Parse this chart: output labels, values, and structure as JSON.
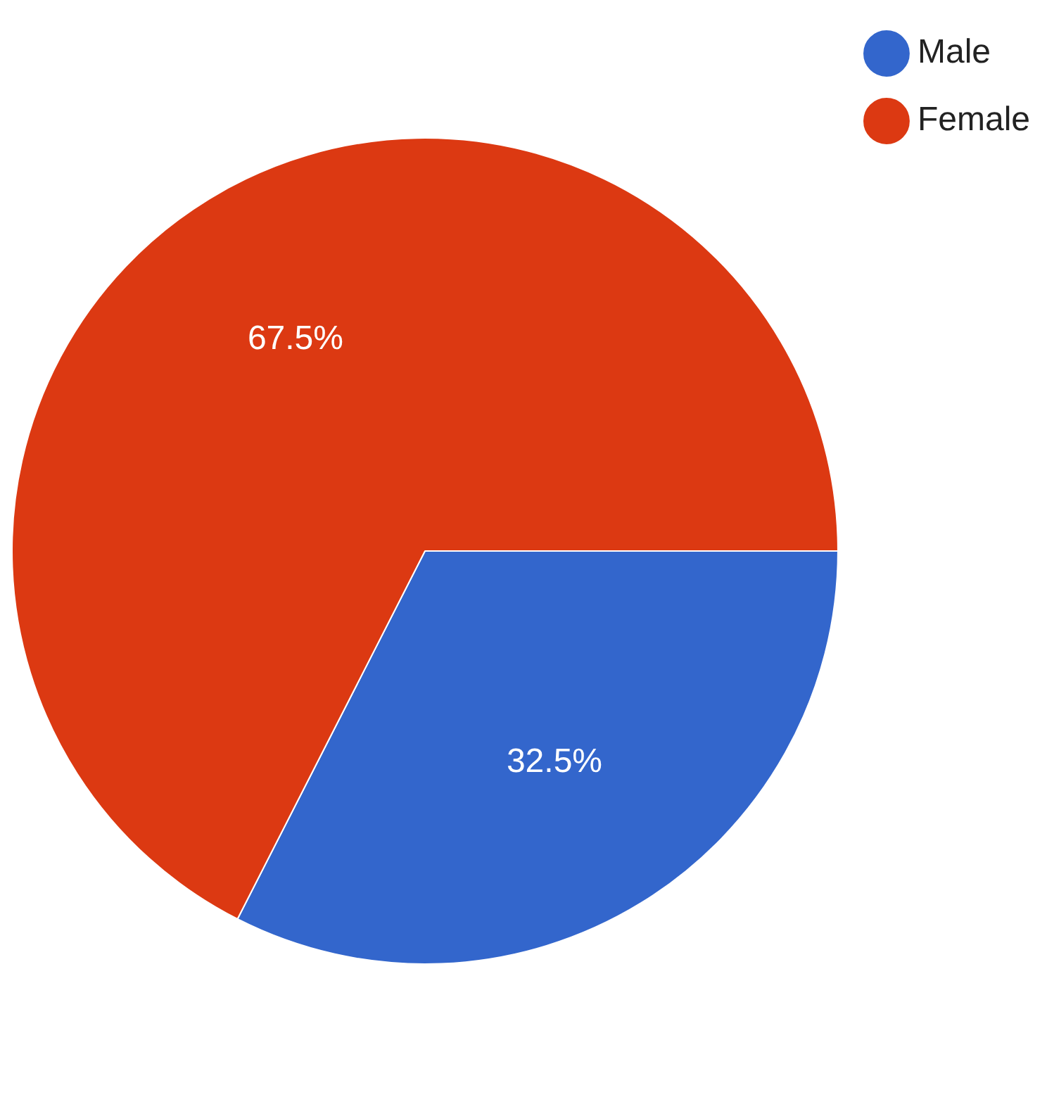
{
  "chart_data": {
    "type": "pie",
    "categories": [
      "Male",
      "Female"
    ],
    "values": [
      32.5,
      67.5
    ],
    "value_labels": [
      "32.5%",
      "67.5%"
    ],
    "colors": [
      "#3366cc",
      "#dc3912"
    ],
    "legend": "top right"
  }
}
